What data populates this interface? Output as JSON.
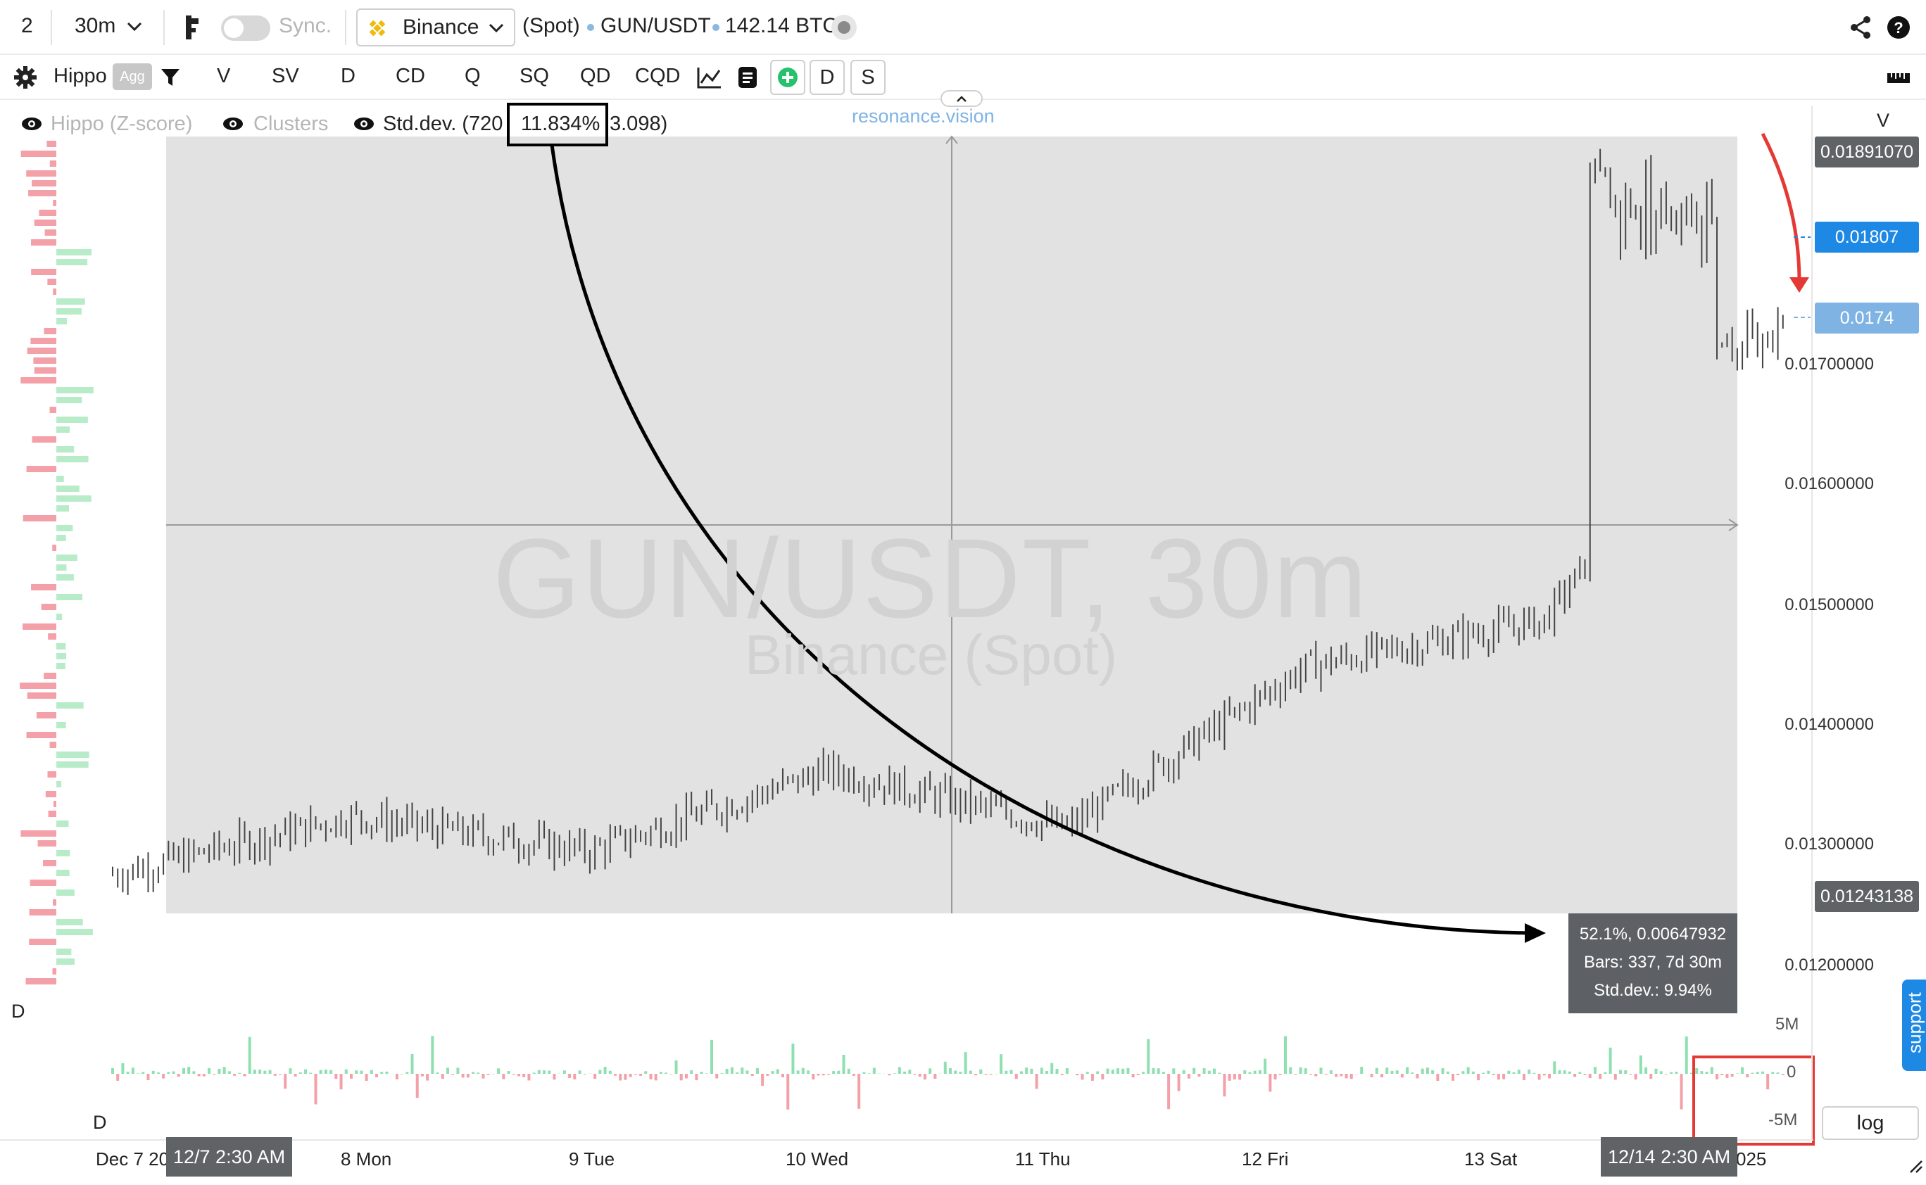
{
  "topbar": {
    "layout_count": "2",
    "interval": "30m",
    "sync_label": "Sync.",
    "exchange": "Binance",
    "market": "(Spot)",
    "symbol": "GUN/USDT",
    "volume": "142.14 BTC"
  },
  "toolbar": {
    "indicator_name": "Hippo",
    "agg_badge": "Agg",
    "buttons": [
      "V",
      "SV",
      "D",
      "CD",
      "Q",
      "SQ",
      "QD",
      "CQD"
    ],
    "box_d": "D",
    "box_s": "S"
  },
  "legend": {
    "zscore": "Hippo (Z-score)",
    "clusters": "Clusters",
    "stddev_prefix": "Std.dev. (720",
    "stddev_value": "11.834%",
    "stddev_suffix": "3.098)",
    "watermark_link": "resonance.vision"
  },
  "watermark": {
    "title": "GUN/USDT, 30m",
    "subtitle": "Binance (Spot)"
  },
  "price_axis": {
    "header": "V",
    "labels": [
      "0.01700000",
      "0.01600000",
      "0.01500000",
      "0.01400000",
      "0.01300000",
      "0.01200000"
    ],
    "tag_high": "0.01891070",
    "tag_current": "0.01807",
    "tag_cursor": "0.0174",
    "tag_low": "0.01243138"
  },
  "volume_axis": {
    "labels": [
      "5M",
      "0",
      "-5M"
    ]
  },
  "panel_labels": {
    "left_d_top": "D",
    "left_d_bottom": "D"
  },
  "measure_box": {
    "line1": "52.1%, 0.00647932",
    "line2": "Bars: 337, 7d 30m",
    "line3": "Std.dev.: 9.94%"
  },
  "time_axis": {
    "labels": [
      "Dec 7 20",
      "8 Mon",
      "9 Tue",
      "10 Wed",
      "11 Thu",
      "12 Fri",
      "13 Sat",
      "025"
    ],
    "start_tag": "12/7 2:30 AM",
    "end_tag": "12/14 2:30 AM"
  },
  "log_button": "log",
  "support_tab": "support",
  "colors": {
    "accent_blue": "#1e88e5",
    "light_blue_tag": "#7fb3e4",
    "dark_tag": "#5f6366",
    "buy_green": "#8fe0b0",
    "sell_red": "#f4a0a8",
    "annotation_red": "#e53935",
    "binance_yellow": "#f0b90b"
  },
  "chart_data": {
    "type": "ohlc",
    "title": "GUN/USDT, 30m",
    "ylim": [
      0.0116,
      0.0193
    ],
    "x": [
      "Dec 7",
      "8 Mon",
      "9 Tue",
      "10 Wed",
      "11 Thu",
      "12 Fri",
      "13 Sat",
      "Dec 14"
    ],
    "close": [
      0.0124,
      0.0129,
      0.0126,
      0.0133,
      0.0128,
      0.0142,
      0.0146,
      0.0174
    ],
    "high": 0.0189107,
    "low_selected": 0.01243138,
    "range_change_pct": 52.1,
    "range_change_abs": 0.00647932,
    "bars": 337
  }
}
